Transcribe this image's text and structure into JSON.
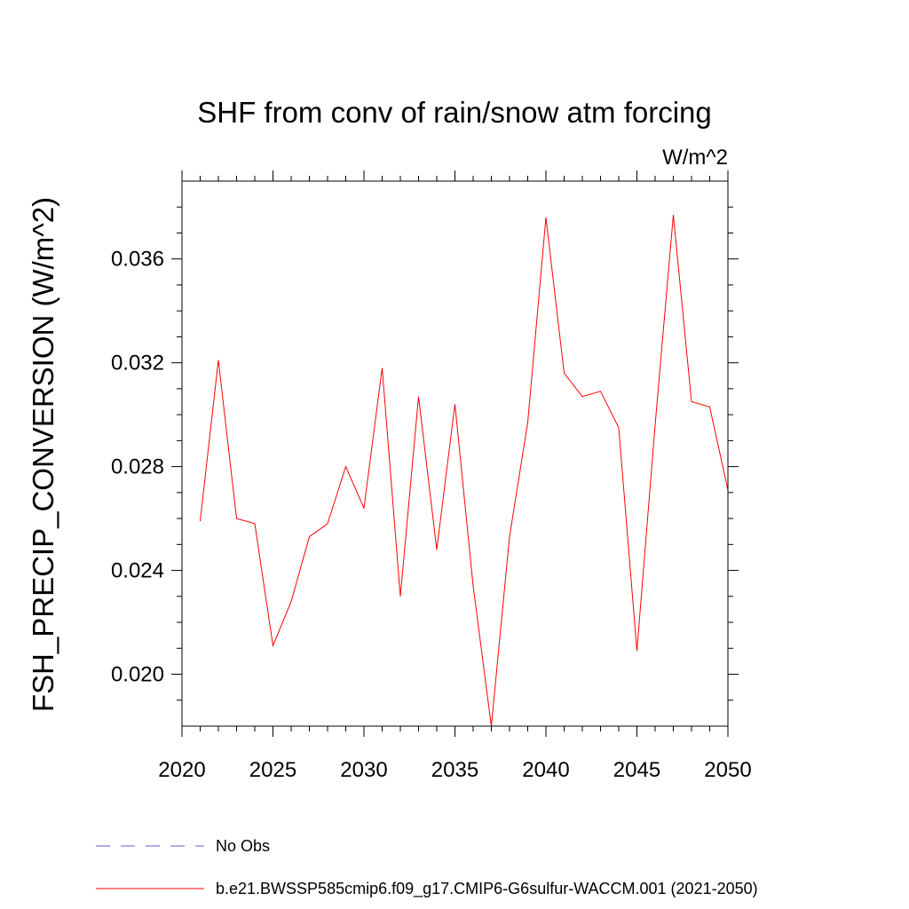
{
  "chart_data": {
    "type": "line",
    "title": "SHF from conv of rain/snow atm forcing",
    "units": "W/m^2",
    "ylabel": "FSH_PRECIP_CONVERSION  (W/m^2)",
    "xlabel": "",
    "xlim": [
      2020,
      2050
    ],
    "ylim": [
      0.018,
      0.039
    ],
    "x_ticks": [
      2020,
      2025,
      2030,
      2035,
      2040,
      2045,
      2050
    ],
    "x_tick_labels": [
      "2020",
      "2025",
      "2030",
      "2035",
      "2040",
      "2045",
      "2050"
    ],
    "y_ticks": [
      0.02,
      0.024,
      0.028,
      0.032,
      0.036
    ],
    "y_tick_labels": [
      "0.020",
      "0.024",
      "0.028",
      "0.032",
      "0.036"
    ],
    "grid": false,
    "series": [
      {
        "name": "b.e21.BWSSP585cmip6.f09_g17.CMIP6-G6sulfur-WACCM.001 (2021-2050)",
        "color": "#ff0000",
        "x": [
          2021,
          2022,
          2023,
          2024,
          2025,
          2026,
          2027,
          2028,
          2029,
          2030,
          2031,
          2032,
          2033,
          2034,
          2035,
          2036,
          2037,
          2038,
          2039,
          2040,
          2041,
          2042,
          2043,
          2044,
          2045,
          2046,
          2047,
          2048,
          2049,
          2050
        ],
        "values": [
          0.0259,
          0.0321,
          0.026,
          0.0258,
          0.0211,
          0.0228,
          0.0253,
          0.0258,
          0.028,
          0.0264,
          0.0318,
          0.023,
          0.0307,
          0.0248,
          0.0304,
          0.0234,
          0.018,
          0.0253,
          0.0297,
          0.0376,
          0.0316,
          0.0307,
          0.0309,
          0.0295,
          0.0209,
          0.0296,
          0.0377,
          0.0305,
          0.0303,
          0.0271
        ]
      }
    ],
    "legend": {
      "placement": "bottom-left",
      "entries": [
        {
          "label": "No Obs",
          "color": "#6a5acd",
          "style": "dashed"
        },
        {
          "label": "b.e21.BWSSP585cmip6.f09_g17.CMIP6-G6sulfur-WACCM.001 (2021-2050)",
          "color": "#ff0000",
          "style": "solid"
        }
      ]
    }
  }
}
